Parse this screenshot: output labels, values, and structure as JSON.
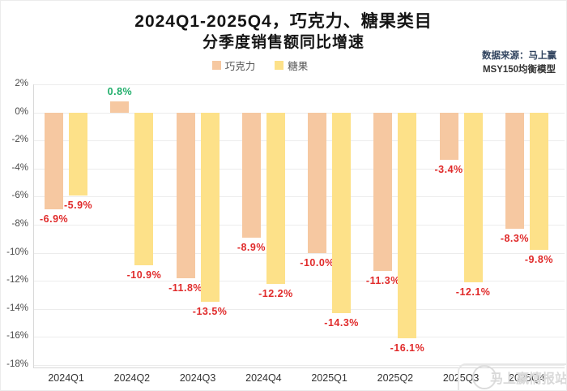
{
  "title": {
    "line1": "2024Q1-2025Q4，巧克力、糖果类目",
    "line2": "分季度销售额同比增速"
  },
  "source": {
    "line1": "数据来源：马上赢",
    "line2": "MSY150均衡模型"
  },
  "legend": [
    {
      "label": "巧克力",
      "color": "#F6C8A1"
    },
    {
      "label": "糖果",
      "color": "#FDE189"
    }
  ],
  "watermark": {
    "text": "马上赢情报站"
  },
  "colors": {
    "positive_label": "#1FAE6A",
    "negative_label": "#E02A2A",
    "grid": "#ececec",
    "axis": "#d8d8d8"
  },
  "chart_data": {
    "type": "bar",
    "title": "2024Q1-2025Q4，巧克力、糖果类目 分季度销售额同比增速",
    "categories": [
      "2024Q1",
      "2024Q2",
      "2024Q3",
      "2024Q4",
      "2025Q1",
      "2025Q2",
      "2025Q3",
      "2025Q4"
    ],
    "series": [
      {
        "name": "巧克力",
        "color": "#F6C8A1",
        "values": [
          -6.9,
          0.8,
          -11.8,
          -8.9,
          -10.0,
          -11.3,
          -3.4,
          -8.3
        ]
      },
      {
        "name": "糖果",
        "color": "#FDE189",
        "values": [
          -5.9,
          -10.9,
          -13.5,
          -12.2,
          -14.3,
          -16.1,
          -12.1,
          -9.8
        ]
      }
    ],
    "xlabel": "",
    "ylabel": "",
    "ylim": [
      -18,
      2
    ],
    "ytick_step": 2,
    "ytick_format": "percent",
    "grid": true,
    "legend_position": "top",
    "data_labels": true
  }
}
